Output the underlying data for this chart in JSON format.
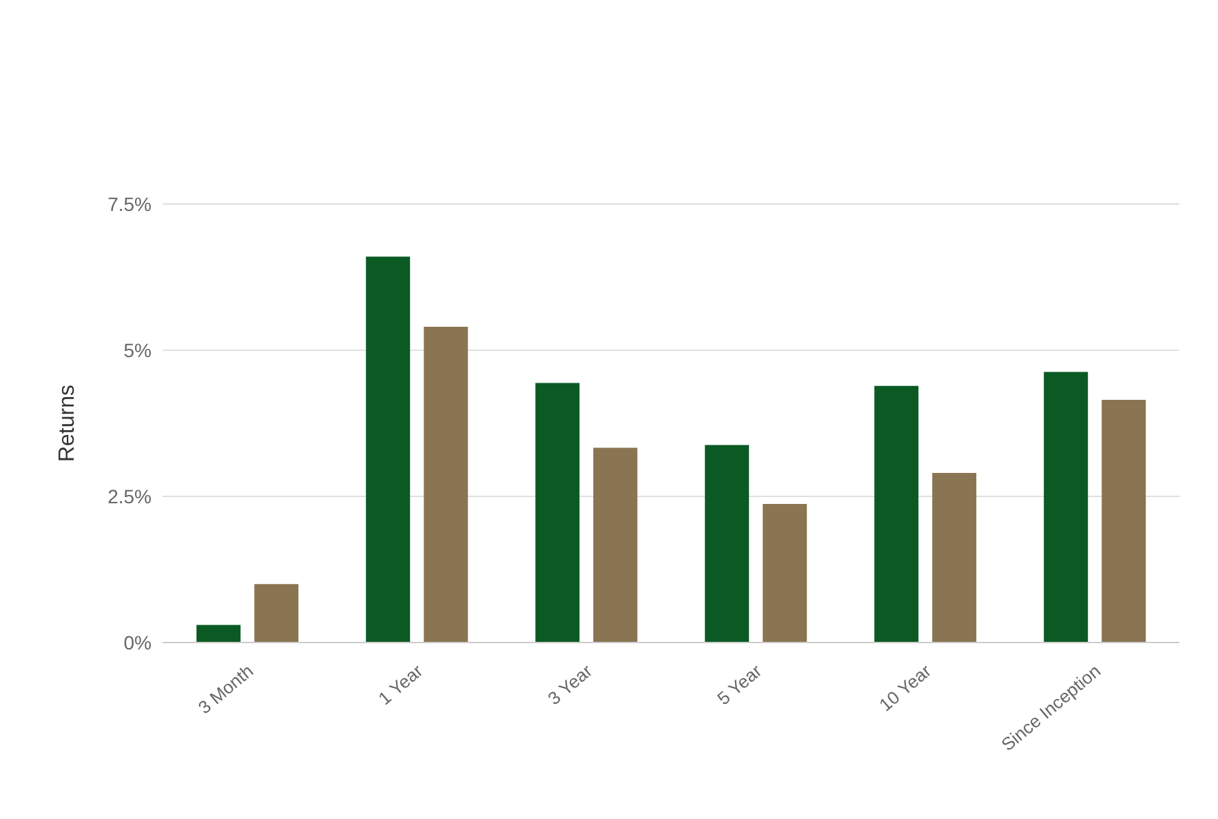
{
  "chart_data": {
    "type": "bar",
    "ylabel": "Returns",
    "categories": [
      "3 Month",
      "1 Year",
      "3 Year",
      "5 Year",
      "10 Year",
      "Since Inception"
    ],
    "series": [
      {
        "color": "#0b5a24",
        "values": [
          0.3,
          6.6,
          4.44,
          3.38,
          4.39,
          4.63
        ]
      },
      {
        "color": "#8a7552",
        "values": [
          1.0,
          5.4,
          3.33,
          2.37,
          2.9,
          4.15
        ]
      }
    ],
    "ylim": [
      0,
      7.5
    ],
    "yticks": [
      {
        "value": 0,
        "label": "0%"
      },
      {
        "value": 2.5,
        "label": "2.5%"
      },
      {
        "value": 5,
        "label": "5%"
      },
      {
        "value": 7.5,
        "label": "7.5%"
      }
    ],
    "grid": "y"
  }
}
